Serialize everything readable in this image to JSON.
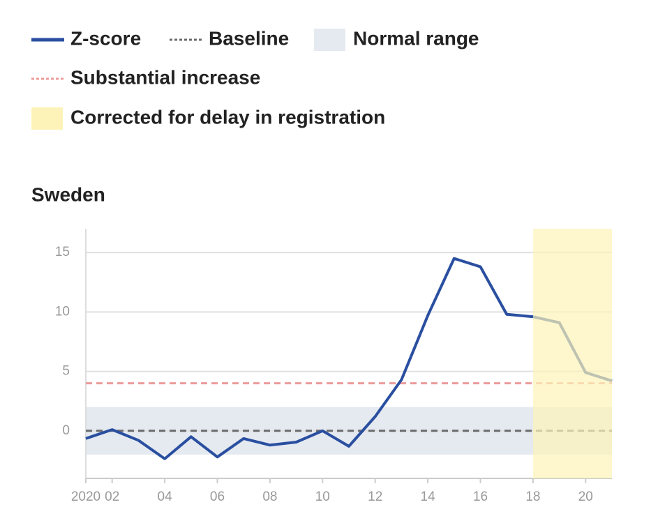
{
  "chart_data": {
    "type": "line",
    "title": "Sweden",
    "x": [
      1,
      2,
      3,
      4,
      5,
      6,
      7,
      8,
      9,
      10,
      11,
      12,
      13,
      14,
      15,
      16,
      17,
      18,
      19,
      20,
      21
    ],
    "series": [
      {
        "name": "Z-score",
        "color": "#2a4fa0",
        "values": [
          -0.65,
          0.1,
          -0.8,
          -2.35,
          -0.5,
          -2.2,
          -0.65,
          -1.2,
          -0.95,
          0,
          -1.3,
          1.2,
          4.3,
          9.7,
          14.5,
          13.8,
          9.8,
          9.6,
          9.1,
          4.9,
          4.2
        ]
      }
    ],
    "reference_lines": [
      {
        "name": "Baseline",
        "value": 0,
        "color": "#6b6b6b"
      },
      {
        "name": "Substantial increase",
        "value": 4,
        "color": "#ec9c9c"
      }
    ],
    "bands": [
      {
        "name": "Normal range",
        "axis": "y",
        "range": [
          -2,
          2
        ],
        "color": "#e5eaf1"
      },
      {
        "name": "Corrected for delay in registration",
        "axis": "x",
        "range": [
          18,
          21
        ],
        "color": "#fdf3b8"
      }
    ],
    "xlim": [
      1,
      21
    ],
    "xticks": [
      {
        "value": 1,
        "label": "2020"
      },
      {
        "value": 2,
        "label": "02"
      },
      {
        "value": 4,
        "label": "04"
      },
      {
        "value": 6,
        "label": "06"
      },
      {
        "value": 8,
        "label": "08"
      },
      10,
      12,
      14,
      16,
      18,
      20
    ],
    "ylim": [
      -4,
      17
    ],
    "yticks": [
      0,
      5,
      10,
      15
    ],
    "grid": true
  }
}
